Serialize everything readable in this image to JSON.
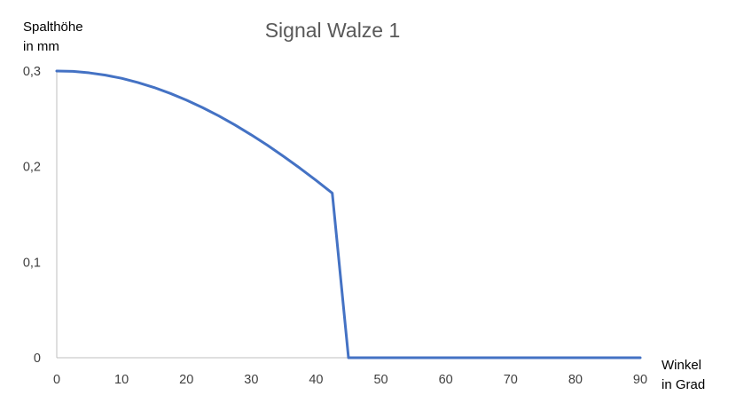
{
  "chart_data": {
    "type": "line",
    "title": "Signal Walze 1",
    "ylabel_lines": [
      "Spalthöhe",
      "in mm"
    ],
    "xlabel_lines": [
      "Winkel",
      "in Grad"
    ],
    "xlim": [
      0,
      90
    ],
    "ylim": [
      0,
      0.3
    ],
    "xticks": [
      0,
      10,
      20,
      30,
      40,
      50,
      60,
      70,
      80,
      90
    ],
    "xtick_labels": [
      "0",
      "10",
      "20",
      "30",
      "40",
      "50",
      "60",
      "70",
      "80",
      "90"
    ],
    "yticks": [
      0,
      0.1,
      0.2,
      0.3
    ],
    "ytick_labels": [
      "0",
      "0,1",
      "0,2",
      "0,3"
    ],
    "grid": false,
    "series": [
      {
        "name": "Signal Walze 1",
        "color": "#4472C4",
        "x": [
          0,
          2.5,
          5,
          7.5,
          10,
          12.5,
          15,
          17.5,
          20,
          22.5,
          25,
          27.5,
          30,
          32.5,
          35,
          37.5,
          40,
          42.5,
          45,
          50,
          60,
          70,
          80,
          90
        ],
        "y": [
          0.3,
          0.2996,
          0.2981,
          0.2957,
          0.2924,
          0.288,
          0.2828,
          0.2766,
          0.2696,
          0.2617,
          0.253,
          0.2435,
          0.2332,
          0.2223,
          0.2106,
          0.1984,
          0.1856,
          0.1722,
          0.0,
          0,
          0,
          0,
          0,
          0
        ]
      }
    ]
  }
}
